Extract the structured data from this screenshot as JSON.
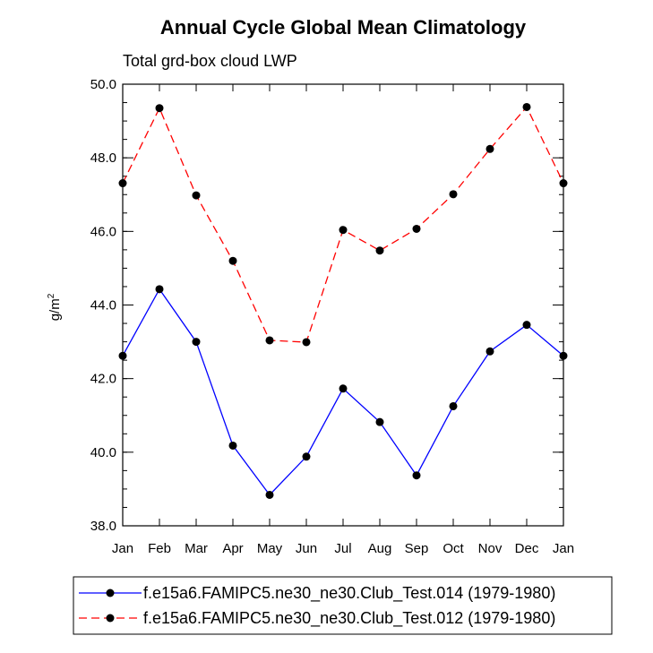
{
  "chart_data": {
    "type": "line",
    "title": "Annual Cycle Global Mean Climatology",
    "subtitle": "Total grd-box cloud LWP",
    "ylabel": "g/m",
    "ylabel_superscript": "2",
    "categories": [
      "Jan",
      "Feb",
      "Mar",
      "Apr",
      "May",
      "Jun",
      "Jul",
      "Aug",
      "Sep",
      "Oct",
      "Nov",
      "Dec",
      "Jan"
    ],
    "ylim": [
      38.0,
      50.0
    ],
    "ytick_labels": [
      "38.0",
      "40.0",
      "42.0",
      "44.0",
      "46.0",
      "48.0",
      "50.0"
    ],
    "grid": false,
    "legend_position": "bottom",
    "series": [
      {
        "name": "f.e15a6.FAMIPC5.ne30_ne30.Club_Test.014 (1979-1980)",
        "color": "#0000ff",
        "line_style": "solid",
        "marker": "filled-circle",
        "values": [
          42.62,
          44.43,
          43.0,
          40.18,
          38.84,
          39.88,
          41.73,
          40.82,
          39.37,
          41.25,
          42.74,
          43.46,
          42.62
        ]
      },
      {
        "name": "f.e15a6.FAMIPC5.ne30_ne30.Club_Test.012 (1979-1980)",
        "color": "#ff0000",
        "line_style": "dashed",
        "marker": "filled-circle",
        "values": [
          47.31,
          49.35,
          46.98,
          45.2,
          43.04,
          42.99,
          46.04,
          45.48,
          46.07,
          47.01,
          48.24,
          49.38,
          47.31
        ]
      }
    ]
  }
}
